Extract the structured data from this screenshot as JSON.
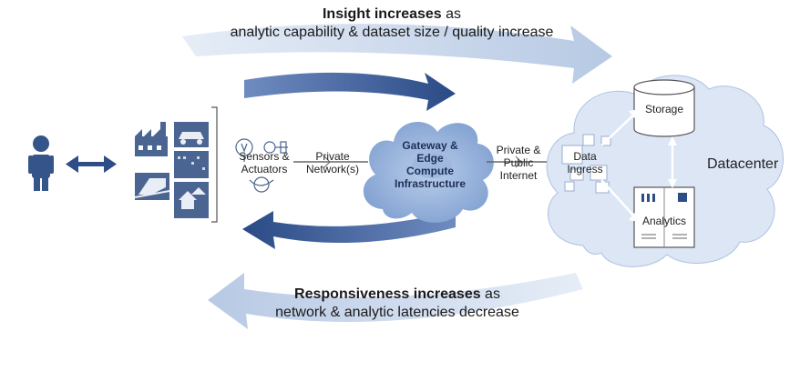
{
  "top_banner": {
    "bold": "Insight increases",
    "rest": " as",
    "line2": "analytic capability & dataset size / quality increase"
  },
  "bottom_banner": {
    "bold": "Responsiveness increases",
    "rest": " as",
    "line2": "network & analytic latencies decrease"
  },
  "labels": {
    "sensors_line1": "Sensors &",
    "sensors_line2": "Actuators",
    "private_net_line1": "Private",
    "private_net_line2": "Network(s)",
    "gateway_line1": "Gateway &",
    "gateway_line2": "Edge",
    "gateway_line3": "Compute",
    "gateway_line4": "Infrastructure",
    "internet_line1": "Private &",
    "internet_line2": "Public",
    "internet_line3": "Internet",
    "ingress_line1": "Data",
    "ingress_line2": "Ingress",
    "storage": "Storage",
    "analytics": "Analytics",
    "datacenter": "Datacenter"
  },
  "colors": {
    "arrow_light": "#c9d6ea",
    "arrow_dark": "#2e4c86",
    "cloud": "#8fadd8",
    "cloud_light": "#d9e4f4",
    "icon": "#4a6591"
  }
}
